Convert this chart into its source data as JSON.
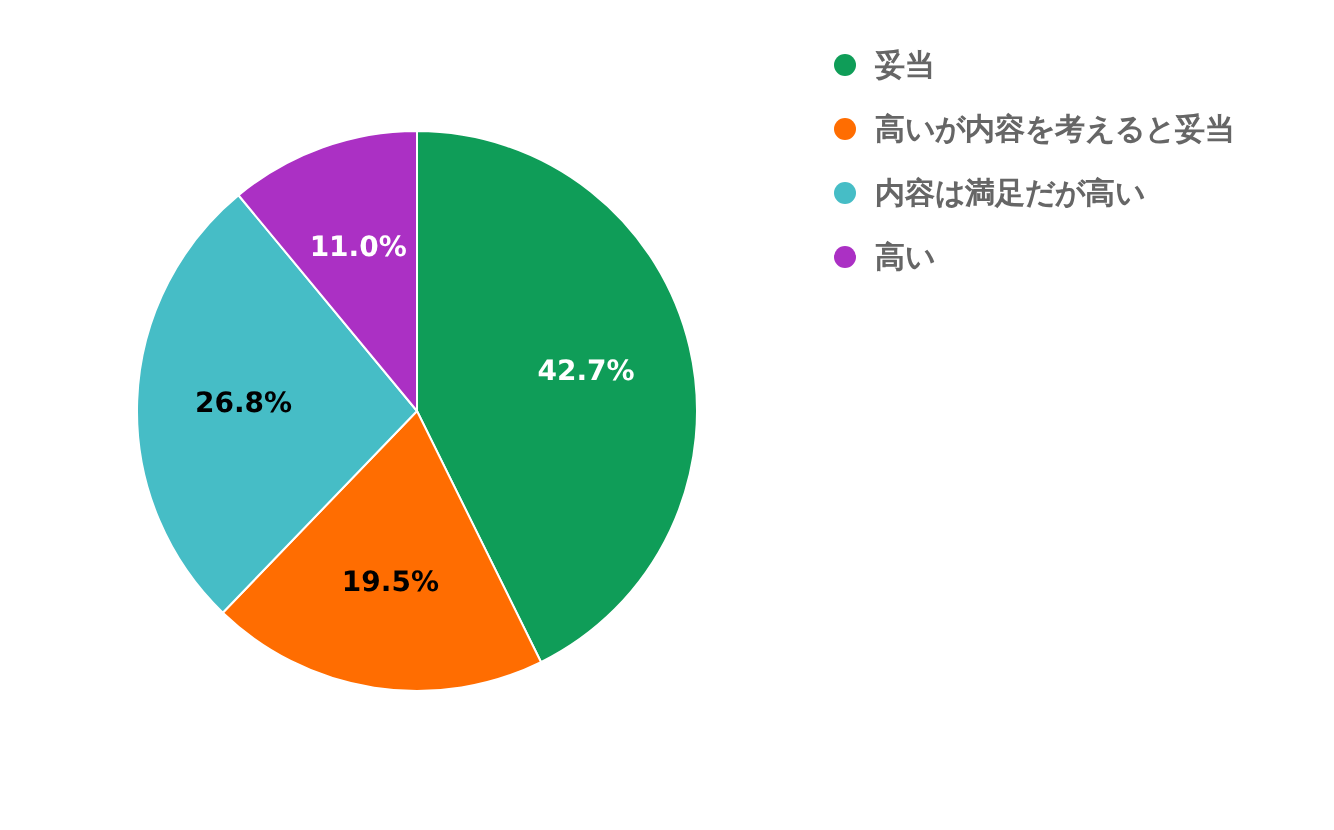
{
  "chart_data": {
    "type": "pie",
    "categories": [
      "妥当",
      "高いが内容を考えると妥当",
      "内容は満足だが高い",
      "高い"
    ],
    "values": [
      42.7,
      19.5,
      26.8,
      11.0
    ],
    "colors": [
      "#0f9d58",
      "#ff6d01",
      "#46bdc6",
      "#ab30c4"
    ],
    "value_labels": [
      "42.7%",
      "19.5%",
      "26.8%",
      "11.0%"
    ],
    "legend": "top right"
  }
}
